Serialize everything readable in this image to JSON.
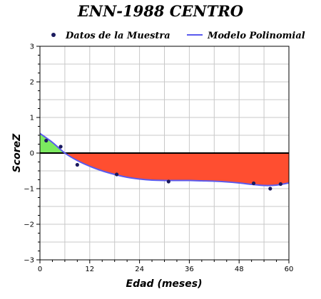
{
  "chart_data": {
    "type": "line",
    "title": "ENN-1988 CENTRO",
    "xlabel": "Edad (meses)",
    "ylabel": "ScoreZ",
    "xlim": [
      0,
      60
    ],
    "ylim": [
      -3,
      3
    ],
    "xticks": [
      0,
      12,
      24,
      36,
      48,
      60
    ],
    "yticks": [
      3,
      2,
      1,
      0,
      -1,
      -2,
      -3
    ],
    "ytick_labels": [
      "3",
      "2",
      "1",
      "0",
      "−1",
      "−2",
      "−3"
    ],
    "grid": true,
    "legend_position": "top",
    "series": [
      {
        "name": "Datos de la Muestra",
        "kind": "scatter",
        "color": "#1a1a5e",
        "x": [
          1.5,
          5,
          9,
          18.5,
          31,
          51.5,
          55.5,
          58
        ],
        "y": [
          0.35,
          0.18,
          -0.33,
          -0.6,
          -0.8,
          -0.85,
          -1.0,
          -0.87
        ]
      },
      {
        "name": "Modelo Polinomial",
        "kind": "line",
        "color": "#5a5aee",
        "x": [
          0,
          3,
          6,
          9,
          12,
          15,
          18,
          21,
          24,
          27,
          30,
          33,
          36,
          39,
          42,
          45,
          48,
          51,
          54,
          57,
          60
        ],
        "y": [
          0.55,
          0.3,
          0.0,
          -0.21,
          -0.37,
          -0.5,
          -0.6,
          -0.68,
          -0.73,
          -0.76,
          -0.77,
          -0.77,
          -0.77,
          -0.78,
          -0.79,
          -0.81,
          -0.84,
          -0.88,
          -0.91,
          -0.9,
          -0.84
        ]
      }
    ],
    "fill_colors": {
      "positive": "#7cea60",
      "negative": "#ff4e30"
    },
    "zero_line": 0
  }
}
